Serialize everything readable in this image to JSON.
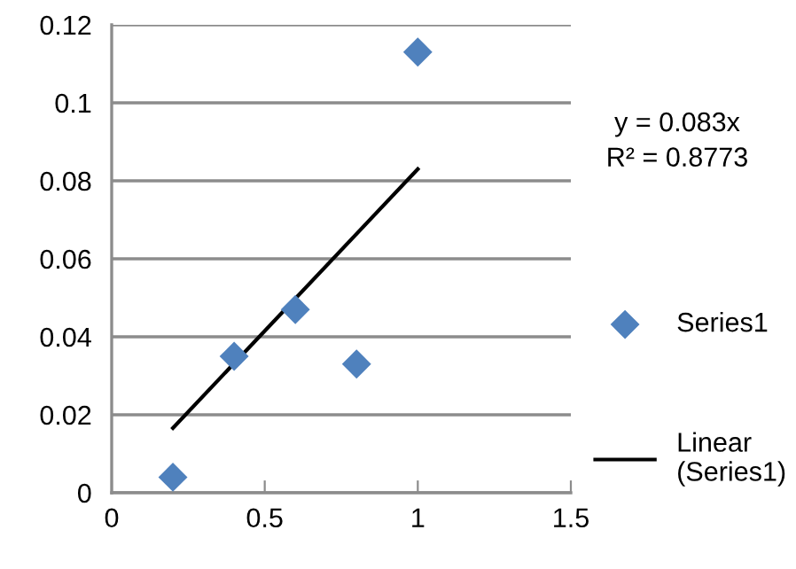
{
  "chart_data": {
    "type": "scatter",
    "series": [
      {
        "name": "Series1",
        "color": "#4f81bd",
        "marker": "diamond",
        "x": [
          0.2,
          0.4,
          0.6,
          0.8,
          1.0
        ],
        "values": [
          0.004,
          0.035,
          0.047,
          0.033,
          0.113
        ]
      },
      {
        "name": "Linear (Series1)",
        "type": "line",
        "color": "#000000",
        "marker": "none",
        "line_style": "solid",
        "x": [
          0.2,
          1.0
        ],
        "values": [
          0.0166,
          0.083
        ]
      }
    ],
    "annotations": [
      "y = 0.083x\nR² = 0.8773"
    ],
    "xlim": [
      0,
      1.5
    ],
    "xticks": [
      0,
      0.5,
      1,
      1.5
    ],
    "ylim": [
      0,
      0.12
    ],
    "yticks": [
      0,
      0.02,
      0.04,
      0.06,
      0.08,
      0.1,
      0.12
    ],
    "grid": "y",
    "legend": "right"
  }
}
